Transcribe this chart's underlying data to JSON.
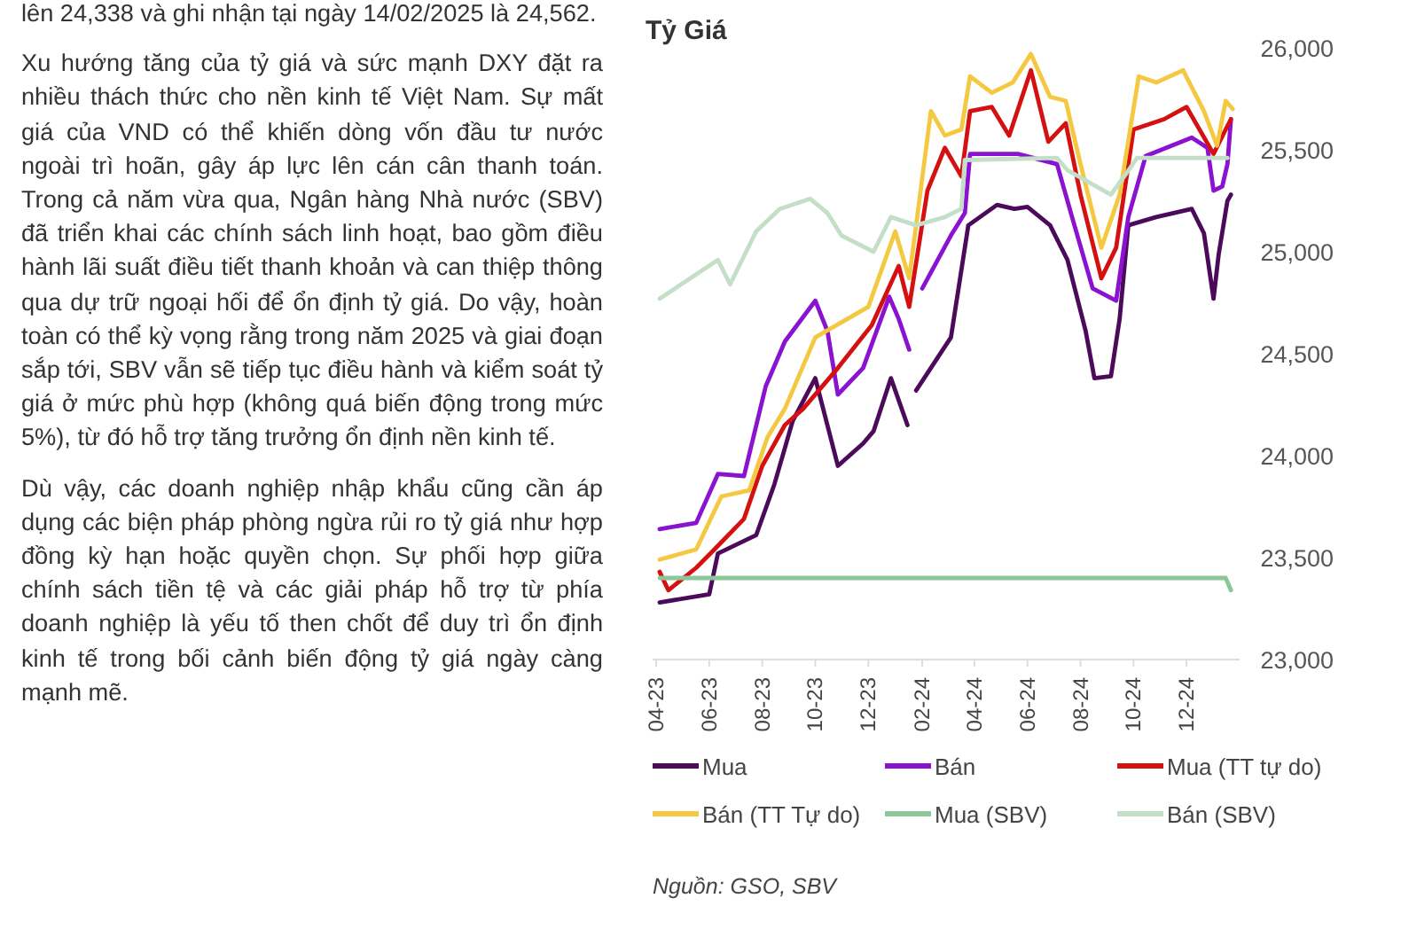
{
  "chart_data": {
    "type": "line",
    "title": "Tỷ Giá",
    "legend": "bottom",
    "line_style": "solid",
    "marker": "none",
    "xlim": [
      "2023-04-01",
      "2025-01-31"
    ],
    "xticks": [
      {
        "value": "2023-04-01",
        "label": "04-23"
      },
      {
        "value": "2023-06-01",
        "label": "06-23"
      },
      {
        "value": "2023-08-01",
        "label": "08-23"
      },
      {
        "value": "2023-10-01",
        "label": "10-23"
      },
      {
        "value": "2023-12-01",
        "label": "12-23"
      },
      {
        "value": "2024-02-01",
        "label": "02-24"
      },
      {
        "value": "2024-04-01",
        "label": "04-24"
      },
      {
        "value": "2024-06-01",
        "label": "06-24"
      },
      {
        "value": "2024-08-01",
        "label": "08-24"
      },
      {
        "value": "2024-10-01",
        "label": "10-24"
      },
      {
        "value": "2024-12-01",
        "label": "12-24"
      }
    ],
    "ylim": [
      23000,
      26000
    ],
    "yticks": [
      {
        "value": 23000,
        "label": "23,000"
      },
      {
        "value": 23500,
        "label": "23,500"
      },
      {
        "value": 24000,
        "label": "24,000"
      },
      {
        "value": 24500,
        "label": "24,500"
      },
      {
        "value": 25000,
        "label": "25,000"
      },
      {
        "value": 25500,
        "label": "25,500"
      },
      {
        "value": 26000,
        "label": "26,000"
      }
    ],
    "series": [
      {
        "name": "Mua",
        "color": "#4b0a5a",
        "x": [
          "2023-04-05",
          "2023-06-01",
          "2023-06-11",
          "2023-07-25",
          "2023-08-15",
          "2023-09-05",
          "2023-10-01",
          "2023-10-27",
          "2023-11-25",
          "2023-12-07",
          "2023-12-27",
          "2024-01-15",
          "2024-01-19",
          "2024-01-25",
          "2024-03-05",
          "2024-03-25",
          "2024-04-27",
          "2024-05-17",
          "2024-06-01",
          "2024-06-27",
          "2024-07-17",
          "2024-08-07",
          "2024-08-17",
          "2024-09-05",
          "2024-09-15",
          "2024-09-25",
          "2024-10-27",
          "2024-12-07",
          "2024-12-21",
          "2025-01-01",
          "2025-01-07",
          "2025-01-17",
          "2025-01-21"
        ],
        "values": [
          23280,
          23320,
          23520,
          23610,
          23860,
          24170,
          24380,
          23950,
          24060,
          24120,
          24380,
          24150,
          null,
          24320,
          24580,
          25130,
          25230,
          25210,
          25220,
          25130,
          24960,
          24610,
          24380,
          24390,
          24670,
          25130,
          25170,
          25210,
          25090,
          24770,
          24990,
          25250,
          25280
        ]
      },
      {
        "name": "Bán",
        "color": "#8a12d0",
        "x": [
          "2023-04-05",
          "2023-05-17",
          "2023-06-11",
          "2023-07-11",
          "2023-08-05",
          "2023-08-27",
          "2023-10-01",
          "2023-10-15",
          "2023-10-27",
          "2023-11-25",
          "2023-12-25",
          "2024-01-05",
          "2024-01-17",
          "2024-01-21",
          "2024-02-01",
          "2024-03-05",
          "2024-03-21",
          "2024-03-27",
          "2024-05-21",
          "2024-07-05",
          "2024-07-25",
          "2024-08-15",
          "2024-09-11",
          "2024-09-25",
          "2024-10-15",
          "2024-12-07",
          "2024-12-25",
          "2025-01-01",
          "2025-01-11",
          "2025-01-17",
          "2025-01-21"
        ],
        "values": [
          23640,
          23670,
          23910,
          23900,
          24340,
          24560,
          24760,
          24610,
          24300,
          24430,
          24780,
          24670,
          24520,
          null,
          24820,
          25080,
          25190,
          25480,
          25480,
          25430,
          25130,
          24820,
          24760,
          25170,
          25470,
          25560,
          25510,
          25300,
          25320,
          25430,
          25650
        ]
      },
      {
        "name": "Mua (TT tự do)",
        "color": "#d41010",
        "x": [
          "2023-04-05",
          "2023-04-15",
          "2023-05-17",
          "2023-06-07",
          "2023-07-11",
          "2023-08-01",
          "2023-08-27",
          "2023-09-17",
          "2023-10-27",
          "2023-12-05",
          "2024-01-05",
          "2024-01-17",
          "2024-02-07",
          "2024-02-27",
          "2024-03-17",
          "2024-03-27",
          "2024-04-21",
          "2024-05-11",
          "2024-06-05",
          "2024-06-25",
          "2024-07-15",
          "2024-08-01",
          "2024-08-25",
          "2024-09-11",
          "2024-10-01",
          "2024-11-05",
          "2024-12-01",
          "2025-01-01",
          "2025-01-15",
          "2025-01-21"
        ],
        "values": [
          23430,
          23340,
          23450,
          23540,
          23690,
          23950,
          24150,
          24230,
          24430,
          24640,
          24930,
          24730,
          25300,
          25510,
          25370,
          25690,
          25710,
          25570,
          25890,
          25540,
          25630,
          25280,
          24870,
          25020,
          25600,
          25650,
          25710,
          25480,
          25600,
          25650
        ]
      },
      {
        "name": "Bán (TT Tự do)",
        "color": "#f5c842",
        "x": [
          "2023-04-05",
          "2023-05-17",
          "2023-06-15",
          "2023-07-17",
          "2023-08-07",
          "2023-08-27",
          "2023-10-01",
          "2023-12-01",
          "2024-01-01",
          "2024-01-17",
          "2024-02-11",
          "2024-02-27",
          "2024-03-17",
          "2024-03-27",
          "2024-04-21",
          "2024-05-15",
          "2024-06-05",
          "2024-06-27",
          "2024-07-15",
          "2024-08-01",
          "2024-08-25",
          "2024-09-15",
          "2024-10-07",
          "2024-10-27",
          "2024-11-27",
          "2024-12-21",
          "2025-01-05",
          "2025-01-15",
          "2025-01-23"
        ],
        "values": [
          23490,
          23540,
          23800,
          23830,
          24090,
          24230,
          24580,
          24730,
          25100,
          24870,
          25690,
          25570,
          25600,
          25860,
          25780,
          25830,
          25970,
          25760,
          25740,
          25430,
          25020,
          25280,
          25860,
          25830,
          25890,
          25690,
          25520,
          25740,
          25700
        ]
      },
      {
        "name": "Mua  (SBV)",
        "color": "#8cc79a",
        "x": [
          "2023-04-05",
          "2025-01-15",
          "2025-01-21"
        ],
        "values": [
          23400,
          23400,
          23340
        ]
      },
      {
        "name": "Bán  (SBV)",
        "color": "#c4dfc8",
        "x": [
          "2023-04-05",
          "2023-06-11",
          "2023-06-25",
          "2023-07-25",
          "2023-08-21",
          "2023-09-25",
          "2023-10-15",
          "2023-10-31",
          "2023-12-07",
          "2023-12-27",
          "2024-01-25",
          "2024-02-27",
          "2024-03-17",
          "2024-03-21",
          "2024-07-05",
          "2024-07-17",
          "2024-09-05",
          "2024-09-27",
          "2024-10-05",
          "2025-01-17"
        ],
        "values": [
          24770,
          24960,
          24840,
          25100,
          25210,
          25260,
          25190,
          25080,
          25000,
          25170,
          25130,
          25170,
          25210,
          25450,
          25460,
          25400,
          25280,
          25410,
          25460,
          25460
        ]
      }
    ],
    "annotations": [
      "lên 24,338 và ghi nhận tại ngày 14/02/2025 là 24,562.",
      "Xu hướng tăng của tỷ giá và sức mạnh DXY đặt ra nhiều thách thức cho nền kinh tế Việt Nam. Sự mất giá của VND có thể khiến dòng vốn đầu tư nước ngoài trì hoãn, gây áp lực lên cán cân thanh toán. Trong cả năm vừa qua, Ngân hàng Nhà nước (SBV) đã triển khai các chính sách linh hoạt, bao gồm điều hành lãi suất điều tiết thanh khoản và can thiệp thông qua dự trữ ngoại hối để ổn định tỷ giá. Do vậy, hoàn toàn có thể kỳ vọng rằng trong năm 2025 và giai đoạn sắp tới, SBV vẫn sẽ tiếp tục điều hành và kiểm soát tỷ giá ở mức phù hợp (không quá biến động trong mức 5%), từ đó hỗ trợ tăng trưởng ổn định nền kinh tế.",
      "Dù vậy, các doanh nghiệp nhập khẩu cũng cần áp dụng các biện pháp phòng ngừa rủi ro tỷ giá như hợp đồng kỳ hạn hoặc quyền chọn. Sự phối hợp giữa chính sách tiền tệ và các giải pháp hỗ trợ từ phía doanh nghiệp là yếu tố then chốt để duy trì ổn định kinh tế trong bối cảnh biến động tỷ giá ngày càng mạnh mẽ.",
      "Nguồn: GSO, SBV"
    ]
  }
}
